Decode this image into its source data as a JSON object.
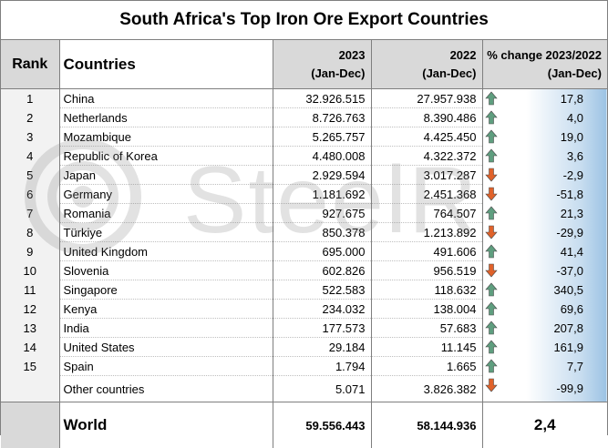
{
  "title": "South Africa's Top Iron Ore Export Countries",
  "watermark": "SteelRadar",
  "headers": {
    "rank": "Rank",
    "countries": "Countries",
    "y2023_line1": "2023",
    "y2023_line2": "(Jan-Dec)",
    "y2022_line1": "2022",
    "y2022_line2": "(Jan-Dec)",
    "pct_line1": "% change 2023/2022",
    "pct_line2": "(Jan-Dec)"
  },
  "colors": {
    "up_arrow": "#5f9e7f",
    "down_arrow": "#e0622a",
    "header_bg": "#d9d9d9"
  },
  "rows": [
    {
      "rank": "1",
      "country": "China",
      "v2023": "32.926.515",
      "v2022": "27.957.938",
      "pct": "17,8",
      "trend": "up"
    },
    {
      "rank": "2",
      "country": "Netherlands",
      "v2023": "8.726.763",
      "v2022": "8.390.486",
      "pct": "4,0",
      "trend": "up"
    },
    {
      "rank": "3",
      "country": "Mozambique",
      "v2023": "5.265.757",
      "v2022": "4.425.450",
      "pct": "19,0",
      "trend": "up"
    },
    {
      "rank": "4",
      "country": "Republic of Korea",
      "v2023": "4.480.008",
      "v2022": "4.322.372",
      "pct": "3,6",
      "trend": "up"
    },
    {
      "rank": "5",
      "country": "Japan",
      "v2023": "2.929.594",
      "v2022": "3.017.287",
      "pct": "-2,9",
      "trend": "down"
    },
    {
      "rank": "6",
      "country": "Germany",
      "v2023": "1.181.692",
      "v2022": "2.451.368",
      "pct": "-51,8",
      "trend": "down"
    },
    {
      "rank": "7",
      "country": "Romania",
      "v2023": "927.675",
      "v2022": "764.507",
      "pct": "21,3",
      "trend": "up"
    },
    {
      "rank": "8",
      "country": "Türkiye",
      "v2023": "850.378",
      "v2022": "1.213.892",
      "pct": "-29,9",
      "trend": "down"
    },
    {
      "rank": "9",
      "country": "United Kingdom",
      "v2023": "695.000",
      "v2022": "491.606",
      "pct": "41,4",
      "trend": "up"
    },
    {
      "rank": "10",
      "country": "Slovenia",
      "v2023": "602.826",
      "v2022": "956.519",
      "pct": "-37,0",
      "trend": "down"
    },
    {
      "rank": "11",
      "country": "Singapore",
      "v2023": "522.583",
      "v2022": "118.632",
      "pct": "340,5",
      "trend": "up"
    },
    {
      "rank": "12",
      "country": "Kenya",
      "v2023": "234.032",
      "v2022": "138.004",
      "pct": "69,6",
      "trend": "up"
    },
    {
      "rank": "13",
      "country": "India",
      "v2023": "177.573",
      "v2022": "57.683",
      "pct": "207,8",
      "trend": "up"
    },
    {
      "rank": "14",
      "country": "United States",
      "v2023": "29.184",
      "v2022": "11.145",
      "pct": "161,9",
      "trend": "up"
    },
    {
      "rank": "15",
      "country": "Spain",
      "v2023": "1.794",
      "v2022": "1.665",
      "pct": "7,7",
      "trend": "up"
    }
  ],
  "other": {
    "rank": "",
    "country": "Other countries",
    "v2023": "5.071",
    "v2022": "3.826.382",
    "pct": "-99,9",
    "trend": "down"
  },
  "total": {
    "country": "World",
    "v2023": "59.556.443",
    "v2022": "58.144.936",
    "pct": "2,4"
  }
}
